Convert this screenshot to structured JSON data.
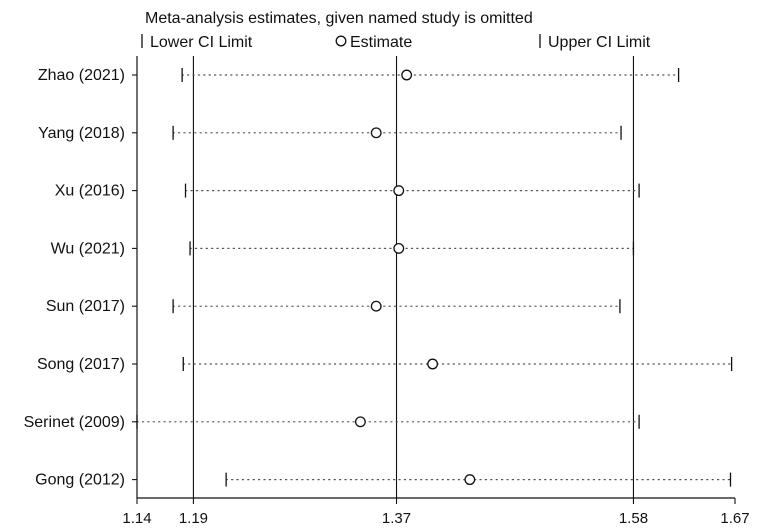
{
  "chart_data": {
    "type": "scatter",
    "title": "Meta-analysis estimates, given named study is omitted",
    "legend": {
      "placement": "top",
      "items": [
        {
          "key": "lower",
          "label": "Lower CI Limit",
          "marker": "vertical-tick"
        },
        {
          "key": "estimate",
          "label": "Estimate",
          "marker": "open-circle"
        },
        {
          "key": "upper",
          "label": "Upper CI Limit",
          "marker": "vertical-tick"
        }
      ]
    },
    "x_ticks": [
      1.14,
      1.19,
      1.37,
      1.58,
      1.67
    ],
    "x_tick_labels": [
      "1.14",
      "1.19",
      "1.37",
      "1.58",
      "1.67"
    ],
    "xlim": [
      1.14,
      1.67
    ],
    "reference_lines": [
      1.19,
      1.37,
      1.58
    ],
    "grid": false,
    "colors": {
      "ink": "#111111",
      "dots": "#555555"
    },
    "studies": [
      {
        "label": "Zhao  (2021)",
        "lower": 1.18,
        "estimate": 1.379,
        "upper": 1.62
      },
      {
        "label": "Yang  (2018)",
        "lower": 1.172,
        "estimate": 1.352,
        "upper": 1.569
      },
      {
        "label": "Xu  (2016)",
        "lower": 1.183,
        "estimate": 1.372,
        "upper": 1.585
      },
      {
        "label": "Wu  (2021)",
        "lower": 1.187,
        "estimate": 1.372,
        "upper": 1.58
      },
      {
        "label": "Sun  (2017)",
        "lower": 1.172,
        "estimate": 1.352,
        "upper": 1.568
      },
      {
        "label": "Song  (2017)",
        "lower": 1.181,
        "estimate": 1.402,
        "upper": 1.667
      },
      {
        "label": "Serinet  (2009)",
        "lower": 1.14,
        "estimate": 1.338,
        "upper": 1.585
      },
      {
        "label": "Gong  (2012)",
        "lower": 1.219,
        "estimate": 1.435,
        "upper": 1.666
      }
    ]
  }
}
